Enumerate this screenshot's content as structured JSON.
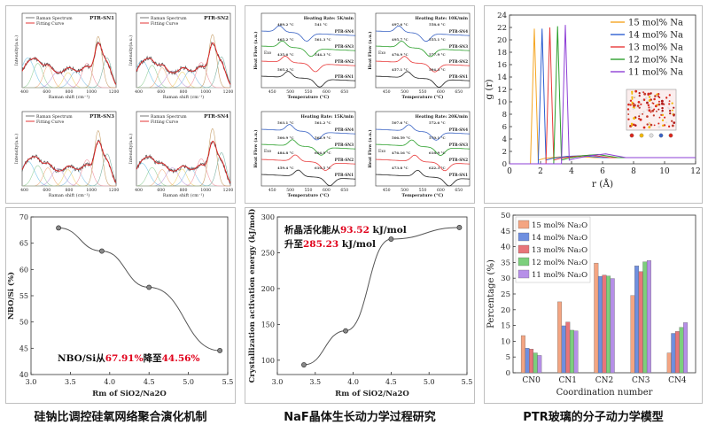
{
  "captions": [
    "硅钠比调控硅氧网络聚合演化机制",
    "NaF晶体生长动力学过程研究",
    "PTR玻璃的分子动力学模型"
  ],
  "raman": {
    "ylabel": "Intensity(a.u.)",
    "xlabel": "Raman shift (cm⁻¹)",
    "legend": [
      "Raman Spectrum",
      "Fitting Curve"
    ],
    "samples": [
      "PTR-SN1",
      "PTR-SN2",
      "PTR-SN3",
      "PTR-SN4"
    ],
    "ticks": [
      "400",
      "600",
      "800",
      "1000",
      "1200"
    ]
  },
  "dsc": {
    "ylabel": "Heat Flow (a.u.)",
    "xlabel": "Temperature (°C)",
    "exo": "Exo",
    "rates": [
      "Heating Rate: 5K/min",
      "Heating Rate: 10K/min",
      "Heating Rate: 15K/min",
      "Heating Rate: 20K/min"
    ],
    "samples": [
      "PTR-SN4",
      "PTR-SN3",
      "PTR-SN2",
      "PTR-SN1"
    ],
    "ticks": [
      "450",
      "500",
      "550",
      "600",
      "650"
    ],
    "peaks": [
      [
        "489.2 °C",
        "465.2 °C",
        "435.6 °C",
        "505.2 °C",
        "541 °C",
        "561.3 °C",
        "544.3 °C"
      ],
      [
        "497.6 °C",
        "495.7 °C",
        "476.9 °C",
        "457.1 °C",
        "558.6 °C",
        "555.1 °C",
        "577.9 °C",
        "594.3 °C"
      ],
      [
        "503.1 °C",
        "500.9 °C",
        "484.8 °C",
        "459.4 °C",
        "561.2 °C",
        "562.9 °C",
        "604.9 °C",
        "610.5 °C"
      ],
      [
        "507.6 °C",
        "506.59 °C",
        "476.16 °C",
        "473.8 °C",
        "572.6 °C",
        "570.1 °C",
        "618.9 °C",
        "622.3 °C"
      ]
    ]
  },
  "chart_data": [
    {
      "type": "line",
      "title": "",
      "xlabel": "Rm of SiO2/Na2O",
      "ylabel": "NBO/Si (%)",
      "xlim": [
        3.0,
        5.5
      ],
      "ylim": [
        40,
        70
      ],
      "x": [
        3.35,
        3.9,
        4.5,
        5.4
      ],
      "y": [
        67.91,
        63.5,
        56.6,
        44.56
      ],
      "xticks": [
        "3.0",
        "3.5",
        "4.0",
        "4.5",
        "5.0",
        "5.5"
      ],
      "yticks": [
        "40",
        "45",
        "50",
        "55",
        "60",
        "65",
        "70"
      ],
      "annotation": {
        "prefix": "NBO/Si从",
        "v1": "67.91%",
        "mid": "降至",
        "v2": "44.56%"
      },
      "color": "#555555"
    },
    {
      "type": "line",
      "title": "",
      "xlabel": "Rm of SiO2/Na2O",
      "ylabel": "Crystallization activation energy (kJ/mol)",
      "xlim": [
        3.0,
        5.5
      ],
      "ylim": [
        80,
        300
      ],
      "x": [
        3.35,
        3.9,
        4.5,
        5.4
      ],
      "y": [
        93.52,
        141,
        269,
        285.23
      ],
      "xticks": [
        "3.0",
        "3.5",
        "4.0",
        "4.5",
        "5.0",
        "5.5"
      ],
      "yticks": [
        "100",
        "150",
        "200",
        "250",
        "300"
      ],
      "annotation": {
        "line1_prefix": "析晶活化能从",
        "v1": "93.52",
        "unit1": " kJ/mol",
        "line2_prefix": "升至",
        "v2": "285.23",
        "unit2": " kJ/mol"
      },
      "color": "#555555"
    },
    {
      "type": "line",
      "title": "",
      "xlabel": "r (Å)",
      "ylabel": "g (r)",
      "xlim": [
        0,
        12
      ],
      "ylim": [
        0,
        24
      ],
      "xticks": [
        "0",
        "2",
        "4",
        "6",
        "8",
        "10",
        "12"
      ],
      "yticks": [
        "0",
        "2",
        "4",
        "6",
        "8",
        "10",
        "12",
        "14",
        "16",
        "18",
        "20",
        "22",
        "24"
      ],
      "legend_position": "top-right",
      "series": [
        {
          "name": "15 mol% Na",
          "color": "#f5a623",
          "x": [
            0,
            1.35,
            1.6,
            1.85,
            2.3,
            3.2,
            4.2,
            5.5,
            7,
            9,
            12
          ],
          "y": [
            0,
            0,
            21.8,
            0.6,
            0.9,
            1.1,
            1.2,
            1.0,
            1.0,
            1.0,
            1.0
          ]
        },
        {
          "name": "14 mol% Na",
          "color": "#2e5fd1",
          "x": [
            0,
            1.85,
            2.1,
            2.35,
            2.8,
            3.7,
            4.7,
            6.0,
            7.5,
            9.5,
            12
          ],
          "y": [
            0,
            0,
            21.8,
            0.6,
            0.9,
            1.2,
            1.3,
            1.0,
            1.0,
            1.0,
            1.0
          ]
        },
        {
          "name": "13 mol% Na",
          "color": "#e83a3a",
          "x": [
            0,
            2.35,
            2.6,
            2.85,
            3.3,
            4.2,
            5.2,
            6.5,
            8,
            10,
            12
          ],
          "y": [
            0,
            0,
            22.0,
            0.6,
            0.9,
            1.2,
            1.4,
            1.0,
            1.0,
            1.0,
            1.0
          ]
        },
        {
          "name": "12 mol% Na",
          "color": "#2ca02c",
          "x": [
            0,
            2.85,
            3.1,
            3.35,
            3.8,
            4.7,
            5.7,
            7.0,
            8.5,
            10.5,
            12
          ],
          "y": [
            0,
            0,
            22.2,
            0.6,
            0.9,
            1.3,
            1.5,
            1.0,
            1.0,
            1.0,
            1.0
          ]
        },
        {
          "name": "11 mol% Na",
          "color": "#8e3fd6",
          "x": [
            0,
            3.35,
            3.6,
            3.85,
            4.3,
            5.2,
            6.2,
            7.5,
            9,
            11,
            12
          ],
          "y": [
            0,
            0,
            22.4,
            0.6,
            0.9,
            1.3,
            1.6,
            1.0,
            1.0,
            1.0,
            1.0
          ]
        }
      ]
    },
    {
      "type": "bar",
      "title": "",
      "xlabel": "Coordination number",
      "ylabel": "Percentage (%)",
      "ylim": [
        0,
        50
      ],
      "categories": [
        "CN0",
        "CN1",
        "CN2",
        "CN3",
        "CN4"
      ],
      "yticks": [
        "0",
        "5",
        "10",
        "15",
        "20",
        "25",
        "30",
        "35",
        "40",
        "45",
        "50"
      ],
      "legend_position": "top-left",
      "series": [
        {
          "name": "15 mol% Na₂O",
          "color": "#f4a582",
          "values": [
            11.8,
            22.5,
            34.8,
            24.5,
            6.3
          ]
        },
        {
          "name": "14 mol% Na₂O",
          "color": "#6f8fe0",
          "values": [
            7.8,
            14.9,
            30.6,
            33.9,
            12.5
          ]
        },
        {
          "name": "13 mol% Na₂O",
          "color": "#e8757a",
          "values": [
            7.5,
            16.1,
            31.0,
            32.1,
            13.1
          ]
        },
        {
          "name": "12 mol% Na₂O",
          "color": "#7ccf7c",
          "values": [
            6.3,
            13.5,
            30.7,
            35.2,
            14.4
          ]
        },
        {
          "name": "11 mol% Na₂O",
          "color": "#b68fe8",
          "values": [
            5.5,
            13.3,
            29.9,
            35.6,
            15.9
          ]
        }
      ]
    }
  ]
}
